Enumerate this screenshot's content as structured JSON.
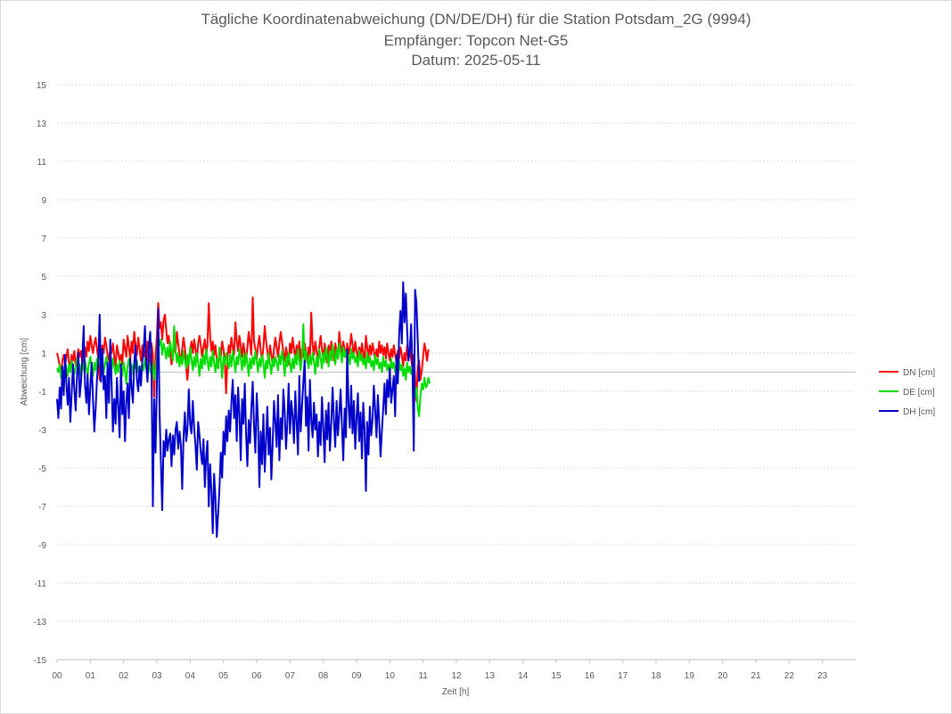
{
  "chart_data": {
    "type": "line",
    "title": "Tägliche Koordinatenabweichung (DN/DE/DH) für die Station Potsdam_2G (9994)",
    "subtitle": "Empfänger: Topcon Net-G5",
    "date_line": "Datum: 2025-05-11",
    "xlabel": "Zeit [h]",
    "ylabel": "Abweichung [cm]",
    "xlim": [
      0,
      24
    ],
    "ylim": [
      -15,
      15
    ],
    "x_ticks": [
      "00",
      "01",
      "02",
      "03",
      "04",
      "05",
      "06",
      "07",
      "08",
      "09",
      "10",
      "11",
      "12",
      "13",
      "14",
      "15",
      "16",
      "17",
      "18",
      "19",
      "20",
      "21",
      "22",
      "23"
    ],
    "y_ticks": [
      15,
      13,
      11,
      9,
      7,
      5,
      3,
      1,
      -1,
      -3,
      -5,
      -7,
      -9,
      -11,
      -13,
      -15
    ],
    "grid": true,
    "legend_position": "right",
    "sample_interval_h": 0.04,
    "series": [
      {
        "name": "DN [cm]",
        "color": "#ff0000",
        "values": [
          1.0,
          0.7,
          0.3,
          0.0,
          0.6,
          0.9,
          0.4,
          0.8,
          1.2,
          0.5,
          0.2,
          0.9,
          0.6,
          1.1,
          0.3,
          0.7,
          1.2,
          0.8,
          1.1,
          0.4,
          0.9,
          1.3,
          0.8,
          1.6,
          1.1,
          1.9,
          1.4,
          1.0,
          1.5,
          1.8,
          1.2,
          0.7,
          -0.4,
          0.8,
          1.4,
          1.0,
          1.8,
          1.4,
          0.9,
          0.6,
          1.2,
          1.0,
          1.5,
          0.8,
          0.3,
          1.4,
          1.0,
          0.6,
          0.9,
          0.4,
          1.7,
          1.2,
          0.8,
          1.9,
          1.3,
          0.7,
          1.6,
          1.0,
          2.1,
          1.4,
          0.9,
          1.8,
          1.2,
          0.6,
          1.4,
          0.8,
          1.1,
          0.5,
          1.6,
          1.0,
          0.2,
          1.5,
          0.9,
          -1.3,
          0.8,
          1.9,
          3.6,
          2.3,
          2.6,
          1.7,
          2.7,
          3.0,
          2.2,
          1.5,
          1.9,
          1.1,
          0.4,
          0.8,
          1.5,
          1.0,
          2.1,
          1.5,
          0.9,
          0.5,
          1.2,
          1.8,
          1.3,
          0.2,
          -0.4,
          0.6,
          1.1,
          1.6,
          1.0,
          1.7,
          1.2,
          0.6,
          1.5,
          1.9,
          1.4,
          0.8,
          1.3,
          1.7,
          0.9,
          1.4,
          3.6,
          1.9,
          1.1,
          1.6,
          0.9,
          1.4,
          0.6,
          0.2,
          1.1,
          0.8,
          1.6,
          1.2,
          0.5,
          -1.1,
          0.7,
          1.4,
          1.0,
          1.8,
          1.3,
          0.9,
          2.6,
          1.6,
          1.1,
          1.9,
          1.4,
          0.8,
          1.5,
          1.0,
          0.6,
          1.3,
          2.1,
          1.5,
          0.9,
          3.9,
          1.6,
          1.2,
          0.7,
          1.4,
          1.9,
          1.1,
          0.6,
          1.3,
          2.4,
          1.6,
          1.1,
          0.5,
          1.4,
          0.9,
          0.4,
          1.2,
          1.8,
          1.3,
          0.8,
          1.5,
          2.1,
          1.6,
          1.0,
          0.6,
          1.3,
          0.9,
          0.4,
          1.5,
          1.0,
          1.8,
          1.2,
          0.7,
          1.4,
          0.9,
          1.6,
          0.6,
          1.2,
          0.8,
          1.5,
          1.1,
          0.5,
          1.3,
          0.8,
          3.1,
          1.4,
          0.9,
          1.6,
          1.1,
          0.6,
          1.3,
          1.9,
          1.2,
          0.7,
          1.5,
          1.0,
          0.5,
          1.4,
          0.9,
          1.6,
          1.2,
          0.6,
          1.5,
          1.1,
          0.7,
          2.1,
          1.4,
          1.0,
          1.6,
          1.2,
          0.8,
          1.5,
          0.9,
          1.3,
          2.0,
          1.4,
          0.9,
          1.6,
          1.1,
          0.7,
          1.3,
          0.8,
          1.5,
          1.0,
          0.6,
          1.9,
          1.3,
          0.8,
          1.4,
          0.9,
          1.5,
          1.1,
          0.6,
          1.2,
          0.8,
          1.6,
          1.0,
          1.4,
          0.9,
          1.3,
          0.7,
          1.5,
          1.0,
          0.6,
          1.2,
          0.8,
          1.4,
          0.9,
          0.5,
          1.1,
          0.7,
          1.3,
          0.9,
          0.3,
          1.0,
          0.6,
          1.4,
          0.8,
          1.2,
          0.7,
          0.2,
          0.9,
          -0.3,
          -1.5,
          0.3,
          0.6,
          -0.4,
          0.1,
          0.8,
          1.5,
          1.1,
          0.6,
          1.2
        ]
      },
      {
        "name": "DE [cm]",
        "color": "#00dd00",
        "values": [
          0.2,
          0.0,
          0.4,
          -0.3,
          0.1,
          -0.6,
          0.5,
          0.2,
          -0.2,
          0.4,
          0.0,
          0.6,
          0.2,
          -0.1,
          0.3,
          0.7,
          0.1,
          0.4,
          -0.2,
          0.5,
          0.1,
          0.6,
          0.2,
          -0.1,
          0.4,
          0.8,
          0.3,
          -0.2,
          0.5,
          0.1,
          0.7,
          0.3,
          1.6,
          0.2,
          0.6,
          0.0,
          0.4,
          0.8,
          0.2,
          -0.3,
          0.5,
          0.1,
          0.7,
          0.3,
          -0.1,
          0.4,
          0.0,
          0.6,
          0.2,
          -0.2,
          0.5,
          0.1,
          -0.6,
          0.3,
          0.7,
          0.1,
          0.4,
          -0.1,
          0.5,
          0.2,
          0.6,
          0.0,
          0.3,
          -0.3,
          0.4,
          0.1,
          0.7,
          0.2,
          -0.1,
          0.5,
          0.0,
          0.6,
          0.3,
          -0.4,
          0.2,
          0.8,
          1.9,
          1.4,
          1.7,
          0.9,
          1.5,
          1.2,
          0.7,
          1.3,
          0.8,
          1.6,
          1.1,
          0.6,
          2.4,
          1.2,
          0.5,
          1.0,
          0.3,
          0.8,
          0.4,
          1.1,
          0.6,
          0.2,
          0.9,
          0.4,
          1.3,
          0.7,
          0.1,
          0.8,
          0.3,
          1.0,
          0.5,
          -0.2,
          0.7,
          0.2,
          0.9,
          0.4,
          1.2,
          0.6,
          0.1,
          0.8,
          0.3,
          1.1,
          0.5,
          0.0,
          0.7,
          0.2,
          1.3,
          0.6,
          -0.3,
          0.8,
          0.4,
          1.0,
          0.5,
          0.2,
          0.9,
          0.3,
          1.1,
          0.6,
          0.0,
          0.8,
          0.4,
          1.2,
          0.7,
          0.1,
          0.9,
          0.3,
          1.0,
          0.5,
          -0.2,
          0.7,
          0.2,
          0.8,
          0.4,
          1.1,
          0.6,
          0.0,
          0.7,
          0.3,
          0.9,
          0.5,
          -0.3,
          0.6,
          0.2,
          1.0,
          0.4,
          -0.1,
          0.7,
          0.3,
          0.8,
          0.5,
          0.1,
          0.9,
          0.4,
          1.1,
          0.6,
          -0.2,
          0.8,
          0.3,
          1.0,
          0.5,
          0.0,
          0.7,
          0.2,
          0.9,
          0.4,
          1.2,
          0.6,
          0.1,
          0.8,
          2.5,
          0.5,
          1.1,
          0.6,
          0.2,
          0.9,
          0.4,
          1.0,
          0.6,
          -0.1,
          0.8,
          0.3,
          1.2,
          0.7,
          0.2,
          1.0,
          0.5,
          1.3,
          0.8,
          0.3,
          1.1,
          0.6,
          1.4,
          0.9,
          0.4,
          1.2,
          0.7,
          1.5,
          1.0,
          0.5,
          1.3,
          0.8,
          1.1,
          0.6,
          0.9,
          0.4,
          1.2,
          0.7,
          1.0,
          0.5,
          0.8,
          0.3,
          1.1,
          0.6,
          0.9,
          0.4,
          0.7,
          0.2,
          1.0,
          0.5,
          0.8,
          0.3,
          0.6,
          0.1,
          0.9,
          0.4,
          0.7,
          0.2,
          0.5,
          0.0,
          0.8,
          0.3,
          0.6,
          0.1,
          0.4,
          -0.1,
          0.7,
          0.2,
          0.5,
          0.0,
          0.3,
          -0.3,
          0.6,
          0.1,
          0.4,
          -0.2,
          0.2,
          -0.4,
          0.5,
          0.0,
          0.3,
          -0.1,
          0.2,
          -0.6,
          -1.3,
          -0.8,
          -1.9,
          -2.3,
          -1.2,
          -0.6,
          -0.9,
          -0.3,
          -0.8,
          -0.7,
          -0.3,
          -0.6
        ]
      },
      {
        "name": "DH [cm]",
        "color": "#0000cc",
        "values": [
          -1.4,
          -2.4,
          -0.8,
          -1.9,
          0.3,
          -1.2,
          0.9,
          -0.6,
          -1.7,
          -0.3,
          -2.6,
          -1.1,
          0.4,
          -0.9,
          -2.0,
          -0.2,
          1.0,
          -1.3,
          -0.5,
          0.8,
          2.4,
          -0.7,
          -1.6,
          -0.1,
          -2.2,
          -0.8,
          0.5,
          -1.4,
          -3.1,
          -1.9,
          -0.4,
          0.6,
          3.0,
          -0.5,
          1.2,
          -0.9,
          -0.2,
          -2.4,
          0.5,
          -1.6,
          1.7,
          -0.6,
          -3.1,
          -1.4,
          -2.7,
          -0.3,
          -1.8,
          -3.4,
          0.4,
          -2.2,
          -1.0,
          -3.6,
          -1.5,
          -0.6,
          -2.4,
          0.7,
          -0.8,
          -1.6,
          0.5,
          1.4,
          -0.4,
          -1.0,
          0.3,
          -0.7,
          0.6,
          1.1,
          2.4,
          0.4,
          -0.5,
          1.3,
          2.1,
          0.2,
          -7.0,
          -1.4,
          -4.2,
          -0.6,
          3.3,
          -2.1,
          -4.7,
          -7.2,
          -3.6,
          -4.4,
          -3.0,
          -4.1,
          -3.5,
          -3.2,
          -4.9,
          -3.3,
          -4.3,
          -3.0,
          -2.6,
          -4.0,
          -3.1,
          -3.8,
          -6.1,
          -3.4,
          -2.1,
          -3.6,
          -3.0,
          -0.9,
          -2.7,
          -3.2,
          -1.5,
          -2.9,
          -3.8,
          -5.1,
          -2.6,
          -3.3,
          -4.2,
          -4.8,
          -3.5,
          -6.0,
          -4.4,
          -3.6,
          -7.0,
          -4.8,
          -6.2,
          -8.4,
          -5.3,
          -6.6,
          -8.6,
          -7.4,
          -6.1,
          -4.2,
          -5.5,
          -3.1,
          -4.3,
          -2.3,
          -3.6,
          -2.0,
          -3.1,
          -1.6,
          -0.4,
          -2.4,
          -1.2,
          -3.6,
          -0.8,
          -2.2,
          -4.6,
          -1.4,
          -2.7,
          -0.6,
          -3.3,
          -4.9,
          -2.5,
          -3.7,
          -1.9,
          -0.5,
          -2.8,
          -4.2,
          -1.1,
          -2.6,
          -6.0,
          -3.1,
          -4.8,
          -2.2,
          -5.2,
          -3.6,
          -1.8,
          -4.3,
          -2.9,
          -5.6,
          -3.7,
          -1.5,
          -2.6,
          -3.9,
          -1.2,
          -4.6,
          -2.4,
          -3.5,
          -0.9,
          -2.1,
          -4.0,
          -2.7,
          -0.6,
          -3.2,
          -1.5,
          -2.3,
          -3.7,
          -1.0,
          -2.6,
          -4.3,
          -0.2,
          -3.1,
          -1.8,
          -0.5,
          0.6,
          -2.8,
          -1.3,
          -4.1,
          -0.4,
          -2.5,
          -3.4,
          -1.6,
          -3.0,
          -2.2,
          -4.4,
          -2.6,
          -3.8,
          -1.3,
          -2.9,
          -4.7,
          -2.0,
          -3.5,
          -1.6,
          -4.1,
          -2.7,
          -0.8,
          -2.5,
          -3.9,
          -1.5,
          -3.3,
          -2.2,
          -0.9,
          -2.8,
          -4.6,
          -1.9,
          -3.4,
          1.2,
          -1.7,
          -2.9,
          -0.7,
          -3.2,
          -1.5,
          -4.0,
          -2.4,
          -1.1,
          -3.6,
          -2.1,
          -4.5,
          -1.6,
          -3.0,
          -6.2,
          -2.6,
          -4.3,
          -1.8,
          -3.3,
          -2.5,
          -0.7,
          -2.0,
          -3.4,
          -1.2,
          -2.6,
          -4.4,
          -3.1,
          -1.9,
          -0.6,
          -2.2,
          -0.4,
          -1.3,
          0.2,
          -1.6,
          -0.9,
          -0.2,
          -2.3,
          0.9,
          -0.6,
          2.0,
          3.2,
          1.5,
          4.7,
          2.6,
          4.1,
          2.3,
          0.6,
          1.1,
          2.5,
          0.3,
          -4.1,
          4.3,
          3.6,
          1.6,
          -0.5
        ]
      }
    ]
  }
}
